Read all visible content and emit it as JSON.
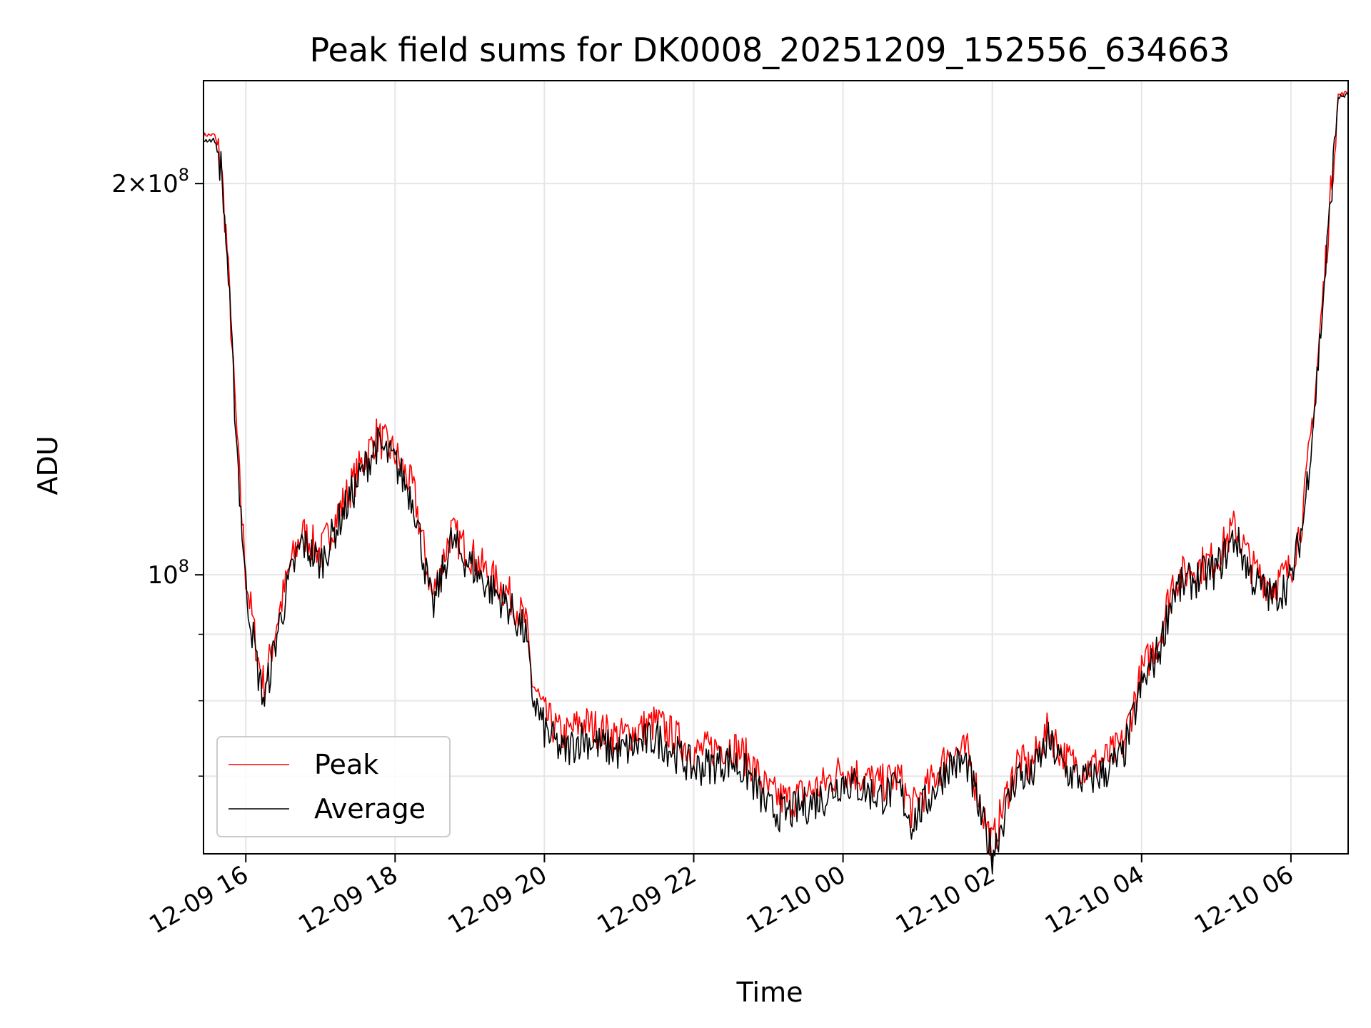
{
  "chart_data": {
    "type": "line",
    "title": "Peak field sums for DK0008_20251209_152556_634663",
    "xlabel": "Time",
    "ylabel": "ADU",
    "yscale": "log",
    "xlim": [
      "2025-12-09 15:26",
      "2025-12-10 06:46"
    ],
    "ylim": [
      61000000,
      240000000
    ],
    "x_ticks": [
      "12-09 16",
      "12-09 18",
      "12-09 20",
      "12-09 22",
      "12-10 00",
      "12-10 02",
      "12-10 04",
      "12-10 06"
    ],
    "y_ticks": [
      {
        "base": "10",
        "exp": "8",
        "value": 100000000
      },
      {
        "coef": "2",
        "base": "10",
        "exp": "8",
        "value": 200000000
      }
    ],
    "grid": true,
    "legend_position": "lower-left",
    "series": [
      {
        "name": "Peak",
        "color": "#ff0000",
        "points": [
          [
            "2025-12-09 15:26",
            218000000
          ],
          [
            "2025-12-09 15:35",
            218000000
          ],
          [
            "2025-12-09 15:40",
            208000000
          ],
          [
            "2025-12-09 15:45",
            178000000
          ],
          [
            "2025-12-09 15:50",
            143000000
          ],
          [
            "2025-12-09 15:55",
            118000000
          ],
          [
            "2025-12-09 16:00",
            100000000
          ],
          [
            "2025-12-09 16:10",
            86000000
          ],
          [
            "2025-12-09 16:15",
            82000000
          ],
          [
            "2025-12-09 16:25",
            92000000
          ],
          [
            "2025-12-09 16:35",
            101000000
          ],
          [
            "2025-12-09 16:45",
            108000000
          ],
          [
            "2025-12-09 17:00",
            104000000
          ],
          [
            "2025-12-09 17:15",
            112000000
          ],
          [
            "2025-12-09 17:30",
            120000000
          ],
          [
            "2025-12-09 17:45",
            128000000
          ],
          [
            "2025-12-09 18:00",
            124000000
          ],
          [
            "2025-12-09 18:15",
            116000000
          ],
          [
            "2025-12-09 18:30",
            96000000
          ],
          [
            "2025-12-09 18:45",
            108000000
          ],
          [
            "2025-12-09 19:00",
            104000000
          ],
          [
            "2025-12-09 19:15",
            100000000
          ],
          [
            "2025-12-09 19:30",
            97000000
          ],
          [
            "2025-12-09 19:45",
            92000000
          ],
          [
            "2025-12-09 19:50",
            83000000
          ],
          [
            "2025-12-09 20:00",
            78000000
          ],
          [
            "2025-12-09 20:15",
            75000000
          ],
          [
            "2025-12-09 20:30",
            77000000
          ],
          [
            "2025-12-09 21:00",
            75000000
          ],
          [
            "2025-12-09 21:30",
            77000000
          ],
          [
            "2025-12-09 21:45",
            75000000
          ],
          [
            "2025-12-09 22:00",
            73000000
          ],
          [
            "2025-12-09 22:30",
            74000000
          ],
          [
            "2025-12-09 22:45",
            72000000
          ],
          [
            "2025-12-09 23:00",
            68000000
          ],
          [
            "2025-12-09 23:15",
            67000000
          ],
          [
            "2025-12-09 23:30",
            68000000
          ],
          [
            "2025-12-09 23:45",
            69000000
          ],
          [
            "2025-12-10 00:00",
            71000000
          ],
          [
            "2025-12-10 00:15",
            70000000
          ],
          [
            "2025-12-10 00:30",
            69000000
          ],
          [
            "2025-12-10 00:45",
            70000000
          ],
          [
            "2025-12-10 00:55",
            66000000
          ],
          [
            "2025-12-10 01:10",
            69000000
          ],
          [
            "2025-12-10 01:25",
            73000000
          ],
          [
            "2025-12-10 01:40",
            73000000
          ],
          [
            "2025-12-10 01:50",
            67000000
          ],
          [
            "2025-12-10 02:00",
            62000000
          ],
          [
            "2025-12-10 02:10",
            67000000
          ],
          [
            "2025-12-10 02:20",
            72000000
          ],
          [
            "2025-12-10 02:30",
            71000000
          ],
          [
            "2025-12-10 02:45",
            76000000
          ],
          [
            "2025-12-10 03:00",
            72000000
          ],
          [
            "2025-12-10 03:15",
            71000000
          ],
          [
            "2025-12-10 03:30",
            72000000
          ],
          [
            "2025-12-10 03:45",
            74000000
          ],
          [
            "2025-12-10 04:00",
            84000000
          ],
          [
            "2025-12-10 04:15",
            90000000
          ],
          [
            "2025-12-10 04:25",
            99000000
          ],
          [
            "2025-12-10 04:40",
            101000000
          ],
          [
            "2025-12-10 05:00",
            103000000
          ],
          [
            "2025-12-10 05:15",
            109000000
          ],
          [
            "2025-12-10 05:30",
            101000000
          ],
          [
            "2025-12-10 05:45",
            98000000
          ],
          [
            "2025-12-10 06:00",
            101000000
          ],
          [
            "2025-12-10 06:10",
            112000000
          ],
          [
            "2025-12-10 06:20",
            140000000
          ],
          [
            "2025-12-10 06:30",
            185000000
          ],
          [
            "2025-12-10 06:38",
            234000000
          ],
          [
            "2025-12-10 06:46",
            235000000
          ]
        ]
      },
      {
        "name": "Average",
        "color": "#000000",
        "points": [
          [
            "2025-12-09 15:26",
            216000000
          ],
          [
            "2025-12-09 15:35",
            216000000
          ],
          [
            "2025-12-09 15:40",
            206000000
          ],
          [
            "2025-12-09 15:45",
            176000000
          ],
          [
            "2025-12-09 15:50",
            141000000
          ],
          [
            "2025-12-09 15:55",
            116000000
          ],
          [
            "2025-12-09 16:00",
            98000000
          ],
          [
            "2025-12-09 16:10",
            84000000
          ],
          [
            "2025-12-09 16:15",
            80000000
          ],
          [
            "2025-12-09 16:25",
            90000000
          ],
          [
            "2025-12-09 16:35",
            99000000
          ],
          [
            "2025-12-09 16:45",
            106000000
          ],
          [
            "2025-12-09 17:00",
            102000000
          ],
          [
            "2025-12-09 17:15",
            110000000
          ],
          [
            "2025-12-09 17:30",
            118000000
          ],
          [
            "2025-12-09 17:45",
            126000000
          ],
          [
            "2025-12-09 18:00",
            122000000
          ],
          [
            "2025-12-09 18:15",
            114000000
          ],
          [
            "2025-12-09 18:30",
            94000000
          ],
          [
            "2025-12-09 18:45",
            106000000
          ],
          [
            "2025-12-09 19:00",
            102000000
          ],
          [
            "2025-12-09 19:15",
            98000000
          ],
          [
            "2025-12-09 19:30",
            95000000
          ],
          [
            "2025-12-09 19:45",
            90000000
          ],
          [
            "2025-12-09 19:50",
            81000000
          ],
          [
            "2025-12-09 20:00",
            76000000
          ],
          [
            "2025-12-09 20:15",
            73000000
          ],
          [
            "2025-12-09 20:30",
            75000000
          ],
          [
            "2025-12-09 21:00",
            73000000
          ],
          [
            "2025-12-09 21:30",
            75000000
          ],
          [
            "2025-12-09 21:45",
            73000000
          ],
          [
            "2025-12-09 22:00",
            71000000
          ],
          [
            "2025-12-09 22:30",
            72000000
          ],
          [
            "2025-12-09 22:45",
            70000000
          ],
          [
            "2025-12-09 23:00",
            66000000
          ],
          [
            "2025-12-09 23:15",
            65500000
          ],
          [
            "2025-12-09 23:30",
            66500000
          ],
          [
            "2025-12-09 23:45",
            67500000
          ],
          [
            "2025-12-10 00:00",
            69500000
          ],
          [
            "2025-12-10 00:15",
            68500000
          ],
          [
            "2025-12-10 00:30",
            67500000
          ],
          [
            "2025-12-10 00:45",
            68500000
          ],
          [
            "2025-12-10 00:55",
            64500000
          ],
          [
            "2025-12-10 01:10",
            67500000
          ],
          [
            "2025-12-10 01:25",
            71500000
          ],
          [
            "2025-12-10 01:40",
            71500000
          ],
          [
            "2025-12-10 01:50",
            65500000
          ],
          [
            "2025-12-10 02:00",
            61000000
          ],
          [
            "2025-12-10 02:10",
            65500000
          ],
          [
            "2025-12-10 02:20",
            70500000
          ],
          [
            "2025-12-10 02:30",
            69500000
          ],
          [
            "2025-12-10 02:45",
            74500000
          ],
          [
            "2025-12-10 03:00",
            70500000
          ],
          [
            "2025-12-10 03:15",
            69500000
          ],
          [
            "2025-12-10 03:30",
            70500000
          ],
          [
            "2025-12-10 03:45",
            72500000
          ],
          [
            "2025-12-10 04:00",
            82000000
          ],
          [
            "2025-12-10 04:15",
            88000000
          ],
          [
            "2025-12-10 04:25",
            97000000
          ],
          [
            "2025-12-10 04:40",
            99000000
          ],
          [
            "2025-12-10 05:00",
            101000000
          ],
          [
            "2025-12-10 05:15",
            107000000
          ],
          [
            "2025-12-10 05:30",
            99000000
          ],
          [
            "2025-12-10 05:45",
            96000000
          ],
          [
            "2025-12-10 06:00",
            99000000
          ],
          [
            "2025-12-10 06:10",
            110000000
          ],
          [
            "2025-12-10 06:20",
            138000000
          ],
          [
            "2025-12-10 06:30",
            183000000
          ],
          [
            "2025-12-10 06:38",
            233000000
          ],
          [
            "2025-12-10 06:46",
            234000000
          ]
        ]
      }
    ]
  }
}
